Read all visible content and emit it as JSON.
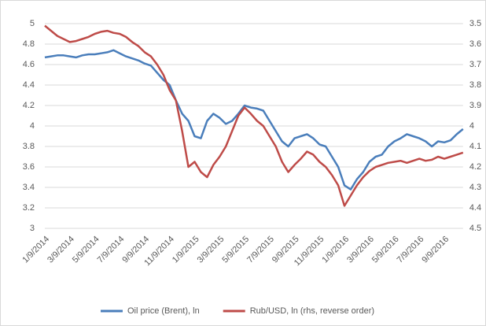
{
  "chart_data": {
    "type": "line",
    "categories": [
      "1/9/2014",
      null,
      null,
      null,
      "3/9/2014",
      null,
      null,
      null,
      "5/9/2014",
      null,
      null,
      null,
      "7/9/2014",
      null,
      null,
      null,
      "9/9/2014",
      null,
      null,
      null,
      "11/9/2014",
      null,
      null,
      null,
      "1/9/2015",
      null,
      null,
      null,
      "3/9/2015",
      null,
      null,
      null,
      "5/9/2015",
      null,
      null,
      null,
      "7/9/2015",
      null,
      null,
      null,
      "9/9/2015",
      null,
      null,
      null,
      "11/9/2015",
      null,
      null,
      null,
      "1/9/2016",
      null,
      null,
      null,
      "3/9/2016",
      null,
      null,
      null,
      "5/9/2016",
      null,
      null,
      null,
      "7/9/2016",
      null,
      null,
      null,
      "9/9/2016",
      null,
      null,
      null
    ],
    "series": [
      {
        "name": "Oil price (Brent), ln",
        "color": "#4a7ebb",
        "values": [
          4.67,
          4.68,
          4.69,
          4.69,
          4.68,
          4.67,
          4.69,
          4.7,
          4.7,
          4.71,
          4.72,
          4.74,
          4.71,
          4.68,
          4.66,
          4.64,
          4.61,
          4.59,
          4.52,
          4.45,
          4.4,
          4.25,
          4.12,
          4.05,
          3.9,
          3.88,
          4.05,
          4.12,
          4.08,
          4.02,
          4.05,
          4.12,
          4.2,
          4.18,
          4.17,
          4.15,
          4.05,
          3.95,
          3.85,
          3.8,
          3.88,
          3.9,
          3.92,
          3.88,
          3.82,
          3.8,
          3.7,
          3.6,
          3.42,
          3.38,
          3.48,
          3.55,
          3.65,
          3.7,
          3.72,
          3.8,
          3.85,
          3.88,
          3.92,
          3.9,
          3.88,
          3.85,
          3.8,
          3.85,
          3.84,
          3.86,
          3.92,
          3.97
        ]
      },
      {
        "name": "Rub/USD, ln (rhs, reverse order)",
        "color": "#be4b48",
        "axis": "y2",
        "values": [
          3.51,
          3.535,
          3.56,
          3.575,
          3.59,
          3.585,
          3.575,
          3.565,
          3.55,
          3.54,
          3.535,
          3.545,
          3.55,
          3.565,
          3.59,
          3.61,
          3.64,
          3.66,
          3.7,
          3.75,
          3.825,
          3.875,
          4.025,
          4.2,
          4.175,
          4.225,
          4.25,
          4.19,
          4.15,
          4.1,
          4.025,
          3.95,
          3.91,
          3.94,
          3.975,
          4.0,
          4.05,
          4.1,
          4.175,
          4.225,
          4.19,
          4.16,
          4.125,
          4.14,
          4.175,
          4.2,
          4.24,
          4.29,
          4.39,
          4.34,
          4.29,
          4.25,
          4.22,
          4.2,
          4.19,
          4.18,
          4.175,
          4.17,
          4.18,
          4.17,
          4.16,
          4.17,
          4.165,
          4.15,
          4.16,
          4.15,
          4.14,
          4.13
        ]
      }
    ],
    "ylim": [
      3,
      5
    ],
    "yticks": [
      3,
      3.2,
      3.4,
      3.6,
      3.8,
      4,
      4.2,
      4.4,
      4.6,
      4.8,
      5
    ],
    "y2lim": [
      3.5,
      4.5
    ],
    "y2ticks": [
      3.5,
      3.6,
      3.7,
      3.8,
      3.9,
      4,
      4.1,
      4.2,
      4.3,
      4.4,
      4.5
    ],
    "y2_reversed": true,
    "grid": true,
    "legend": "bottom"
  }
}
